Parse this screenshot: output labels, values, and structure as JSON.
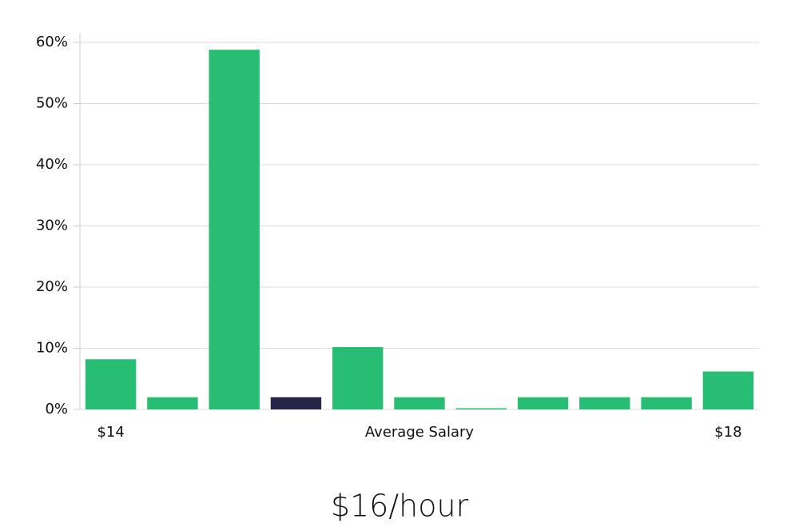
{
  "chart_data": {
    "type": "bar",
    "subtitle": "$16/hour",
    "xlabel": "Average Salary",
    "categories": [
      "$14",
      null,
      null,
      null,
      null,
      null,
      null,
      null,
      null,
      null,
      "$18"
    ],
    "values": [
      8.2,
      2,
      58.8,
      2,
      10.2,
      2,
      0.2,
      2,
      2,
      2,
      6.2
    ],
    "colors": [
      "#27be74",
      "#27be74",
      "#27be74",
      "#262447",
      "#27be74",
      "#27be74",
      "#27be74",
      "#27be74",
      "#27be74",
      "#27be74",
      "#27be74"
    ],
    "ylim": [
      0,
      60
    ],
    "yticks": [
      {
        "value": 0,
        "label": "0%"
      },
      {
        "value": 10,
        "label": "10%"
      },
      {
        "value": 20,
        "label": "20%"
      },
      {
        "value": 30,
        "label": "30%"
      },
      {
        "value": 40,
        "label": "40%"
      },
      {
        "value": 50,
        "label": "50%"
      },
      {
        "value": 60,
        "label": "60%"
      }
    ],
    "grid": true
  }
}
